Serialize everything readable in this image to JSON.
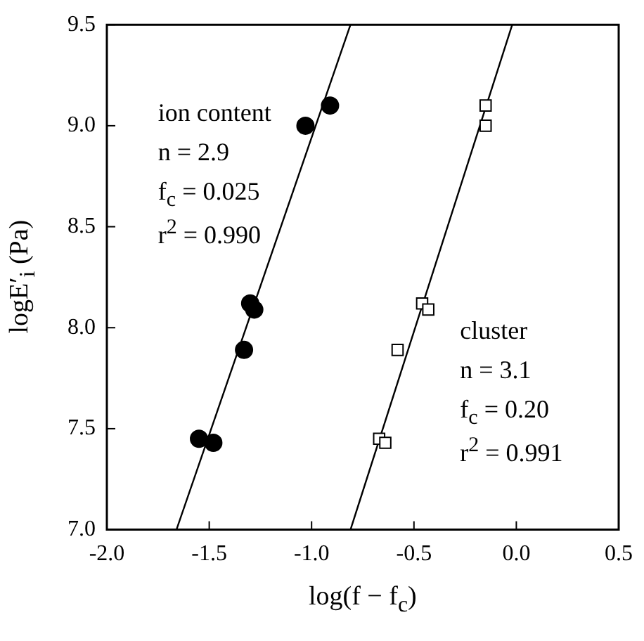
{
  "chart_data": {
    "type": "scatter",
    "xlabel": "log(f − f$_{c}$)",
    "ylabel": "logE′$_{i}$ (Pa)",
    "xlim": [
      -2.0,
      0.5
    ],
    "xticks": [
      {
        "value": -2,
        "label": "-2.0"
      },
      {
        "value": -1.5,
        "label": "-1.5"
      },
      {
        "value": -1,
        "label": "-1.0"
      },
      {
        "value": -0.5,
        "label": "-0.5"
      },
      {
        "value": 0,
        "label": "0.0"
      },
      {
        "value": 0.5,
        "label": "0.5"
      }
    ],
    "ylim": [
      7.0,
      9.5
    ],
    "yticks": [
      {
        "value": 7,
        "label": "7.0"
      },
      {
        "value": 7.5,
        "label": "7.5"
      },
      {
        "value": 8,
        "label": "8.0"
      },
      {
        "value": 8.5,
        "label": "8.5"
      },
      {
        "value": 9,
        "label": "9.0"
      },
      {
        "value": 9.5,
        "label": "9.5"
      }
    ],
    "grid": false,
    "legend": false,
    "series": [
      {
        "type": "scatter",
        "marker": "circle",
        "color": "#000000",
        "x": [
          -1.03,
          -0.91,
          -1.3,
          -1.28,
          -1.33,
          -1.55,
          -1.48
        ],
        "values": [
          9.0,
          9.1,
          8.12,
          8.09,
          7.89,
          7.45,
          7.43
        ]
      },
      {
        "type": "scatter",
        "marker": "square",
        "color": "#000000",
        "x": [
          -0.15,
          -0.15,
          -0.46,
          -0.43,
          -0.58,
          -0.67,
          -0.64
        ],
        "values": [
          9.1,
          9.0,
          8.12,
          8.09,
          7.89,
          7.45,
          7.43
        ]
      },
      {
        "type": "line",
        "marker": "none",
        "color": "#000000",
        "x": [
          -1.66,
          -0.81
        ],
        "values": [
          7.0,
          9.5
        ]
      },
      {
        "type": "line",
        "marker": "none",
        "color": "#000000",
        "x": [
          -0.81,
          -0.02
        ],
        "values": [
          7.0,
          9.5
        ]
      }
    ],
    "annotations": [
      "ion content",
      "n = 2.9",
      "f$_{c}$ = 0.025",
      "r$^{2}$ = 0.990",
      "cluster",
      "n = 3.1",
      "f$_{c}$ = 0.20",
      "r$^{2}$ = 0.991"
    ]
  }
}
